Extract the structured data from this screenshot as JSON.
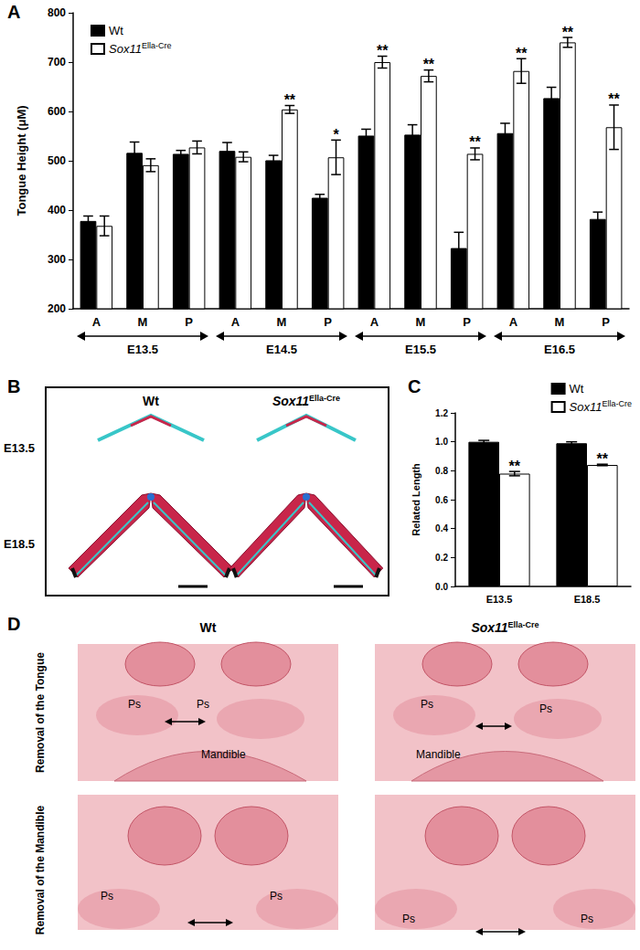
{
  "chart_data": [
    {
      "panel": "A",
      "type": "bar",
      "y_label": "Tongue Height (μM)",
      "categories": [
        "A",
        "M",
        "P",
        "A",
        "M",
        "P",
        "A",
        "M",
        "P",
        "A",
        "M",
        "P"
      ],
      "x_groups": [
        "E13.5",
        "E14.5",
        "E15.5",
        "E16.5"
      ],
      "ylim": [
        200,
        800
      ],
      "yticks": [
        200,
        300,
        400,
        500,
        600,
        700,
        800
      ],
      "grid": false,
      "legend": "upper left",
      "series": [
        {
          "name": "Wt",
          "color": "#000000",
          "values": [
            378,
            516,
            514,
            520,
            501,
            425,
            551,
            553,
            323,
            556,
            627,
            382
          ],
          "errors": [
            10,
            22,
            7,
            17,
            10,
            7,
            13,
            20,
            32,
            20,
            22,
            14
          ]
        },
        {
          "name": "Sox11Ella-Cre",
          "color": "#ffffff",
          "values": [
            368,
            491,
            527,
            508,
            604,
            507,
            700,
            672,
            514,
            682,
            740,
            568
          ],
          "errors": [
            20,
            13,
            13,
            10,
            8,
            35,
            12,
            12,
            12,
            25,
            10,
            45
          ],
          "significance": [
            null,
            null,
            null,
            null,
            "**",
            "*",
            "**",
            "**",
            "**",
            "**",
            "**",
            "**"
          ]
        }
      ]
    },
    {
      "panel": "C",
      "type": "bar",
      "y_label": "Related Length",
      "categories": [
        "E13.5",
        "E18.5"
      ],
      "ylim": [
        0,
        1.2
      ],
      "yticks": [
        {
          "value": 0,
          "label": "0.0"
        },
        0.2,
        0.4,
        0.6,
        0.8,
        {
          "value": 1,
          "label": "1.0"
        },
        1.2
      ],
      "grid": false,
      "legend": "upper right",
      "series": [
        {
          "name": "Wt",
          "color": "#000000",
          "values": [
            1.0,
            0.99
          ],
          "errors": [
            0.01,
            0.01
          ]
        },
        {
          "name": "Sox11Ella-Cre",
          "color": "#ffffff",
          "values": [
            0.78,
            0.84
          ],
          "errors": [
            0.015,
            0.005
          ],
          "significance": [
            "**",
            "**"
          ]
        }
      ]
    }
  ],
  "panel_b": {
    "panel": "B",
    "columns": [
      "Wt",
      "Sox11Ella-Cre"
    ],
    "rows": [
      "E13.5",
      "E18.5"
    ]
  },
  "panel_d": {
    "panel": "D",
    "columns": [
      "Wt",
      "Sox11Ella-Cre"
    ],
    "rows": [
      {
        "label": "Removal of the Tongue",
        "labels": [
          "Ps",
          "Ps",
          "Mandible"
        ]
      },
      {
        "label": "Removal of the Mandible",
        "labels": [
          "Ps",
          "Ps"
        ]
      }
    ]
  }
}
